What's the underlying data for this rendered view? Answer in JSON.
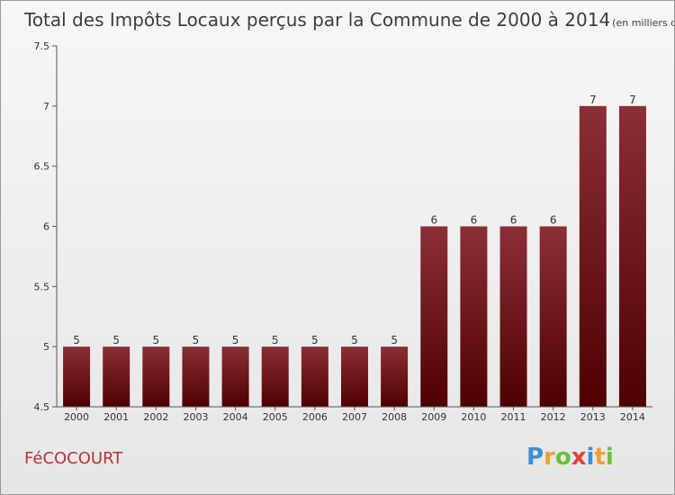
{
  "chart_data": {
    "type": "bar",
    "title": "Total des Impôts Locaux perçus par la Commune de 2000 à 2014",
    "title_unit": "(en milliers d'€)",
    "categories": [
      "2000",
      "2001",
      "2002",
      "2003",
      "2004",
      "2005",
      "2006",
      "2007",
      "2008",
      "2009",
      "2010",
      "2011",
      "2012",
      "2013",
      "2014"
    ],
    "values": [
      5,
      5,
      5,
      5,
      5,
      5,
      5,
      5,
      5,
      6,
      6,
      6,
      6,
      7,
      7
    ],
    "data_labels": [
      "5",
      "5",
      "5",
      "5",
      "5",
      "5",
      "5",
      "5",
      "5",
      "6",
      "6",
      "6",
      "6",
      "7",
      "7"
    ],
    "yticks": [
      4.5,
      5,
      5.5,
      6,
      6.5,
      7,
      7.5
    ],
    "ytick_labels": [
      "4.5",
      "5",
      "5.5",
      "6",
      "6.5",
      "7",
      "7.5"
    ],
    "ylim": [
      4.5,
      7.5
    ],
    "xlabel": "",
    "ylabel": "",
    "bar_color_top": "#8a2f36",
    "bar_color_bottom": "#4f0000"
  },
  "footer": {
    "commune": "FéCOCOURT",
    "logo": {
      "letters": [
        "P",
        "r",
        "o",
        "x",
        "i",
        "t",
        "i"
      ],
      "colors": [
        "#3c8fd4",
        "#f0a030",
        "#6bbf3a",
        "#e04040",
        "#3c8fd4",
        "#f0a030",
        "#6bbf3a"
      ]
    }
  }
}
